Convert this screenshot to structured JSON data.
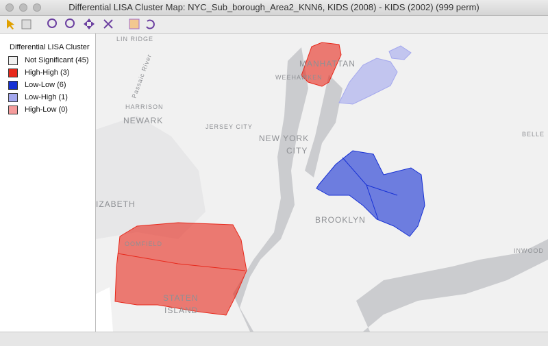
{
  "window": {
    "title": "Differential LISA Cluster Map: NYC_Sub_borough_Area2_KNN6, KIDS (2008) - KIDS (2002) (999 perm)"
  },
  "legend": {
    "title": "Differential LISA Cluster",
    "entries": [
      {
        "label": "Not Significant (45)",
        "color": "#f0f0f0"
      },
      {
        "label": "High-High (3)",
        "color": "#e8291c"
      },
      {
        "label": "Low-Low (6)",
        "color": "#1630d4"
      },
      {
        "label": "Low-High (1)",
        "color": "#a4a8ee"
      },
      {
        "label": "High-Low (0)",
        "color": "#f59c9c"
      }
    ]
  },
  "map_labels": [
    "NEWARK",
    "NEW YORK",
    "CITY",
    "BROOKLYN",
    "MANHATTAN",
    "HARRISON",
    "JERSEY CITY",
    "WEEHAWKEN",
    "STATEN",
    "ISLAND",
    "IZABETH",
    "OOMFIELD",
    "Passaic River",
    "LIN RIDGE",
    "INWOOD",
    "BELLE"
  ]
}
